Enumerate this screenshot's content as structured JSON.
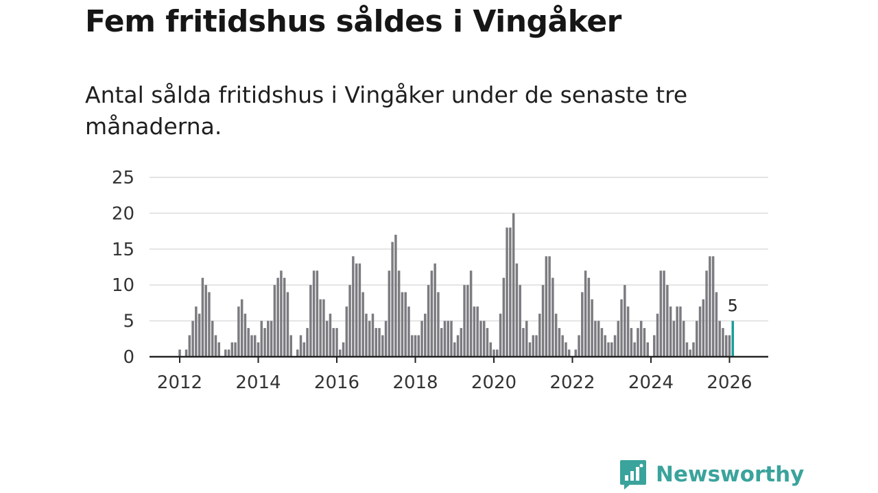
{
  "title": "Fem fritidshus såldes i Vingåker",
  "subtitle": "Antal sålda fritidshus i Vingåker under de senaste tre månaderna.",
  "brand": {
    "name": "Newsworthy",
    "icon": "newsworthy-logo-icon"
  },
  "colors": {
    "bar": "#7b7b80",
    "highlight": "#1a9e9a",
    "axis": "#222222",
    "grid": "#dcdcdc",
    "brand": "#3aa39c"
  },
  "chart_data": {
    "type": "bar",
    "title": "Fem fritidshus såldes i Vingåker",
    "xlabel": "",
    "ylabel": "",
    "ylim": [
      0,
      25
    ],
    "yticks": [
      0,
      5,
      10,
      15,
      20,
      25
    ],
    "xlim": [
      2011.5,
      2026.65
    ],
    "xticks": [
      "2012",
      "2014",
      "2016",
      "2018",
      "2020",
      "2022",
      "2024",
      "2026"
    ],
    "grid": true,
    "start": "2012-01",
    "frequency": "monthly",
    "values": [
      1,
      0,
      1,
      3,
      5,
      7,
      6,
      11,
      10,
      9,
      5,
      3,
      2,
      0,
      1,
      1,
      2,
      2,
      7,
      8,
      6,
      4,
      3,
      3,
      2,
      5,
      4,
      5,
      5,
      10,
      11,
      12,
      11,
      9,
      3,
      0,
      1,
      3,
      2,
      4,
      10,
      12,
      12,
      8,
      8,
      5,
      6,
      4,
      4,
      1,
      2,
      7,
      10,
      14,
      13,
      13,
      9,
      6,
      5,
      6,
      4,
      4,
      3,
      5,
      12,
      16,
      17,
      12,
      9,
      9,
      7,
      3,
      3,
      3,
      5,
      6,
      10,
      12,
      13,
      9,
      4,
      5,
      5,
      5,
      2,
      3,
      4,
      10,
      10,
      12,
      7,
      7,
      5,
      5,
      4,
      2,
      1,
      1,
      6,
      11,
      18,
      18,
      20,
      13,
      10,
      4,
      5,
      2,
      3,
      3,
      6,
      10,
      14,
      14,
      11,
      6,
      4,
      3,
      2,
      1,
      0,
      1,
      3,
      9,
      12,
      11,
      8,
      5,
      5,
      4,
      3,
      2,
      2,
      3,
      5,
      8,
      10,
      7,
      4,
      2,
      4,
      5,
      4,
      2,
      0,
      3,
      6,
      12,
      12,
      10,
      7,
      5,
      7,
      7,
      5,
      2,
      1,
      2,
      5,
      7,
      8,
      12,
      14,
      14,
      9,
      5,
      4,
      3,
      3,
      5
    ],
    "highlight": {
      "date": "2026-02",
      "value": 5,
      "label": "5"
    }
  }
}
